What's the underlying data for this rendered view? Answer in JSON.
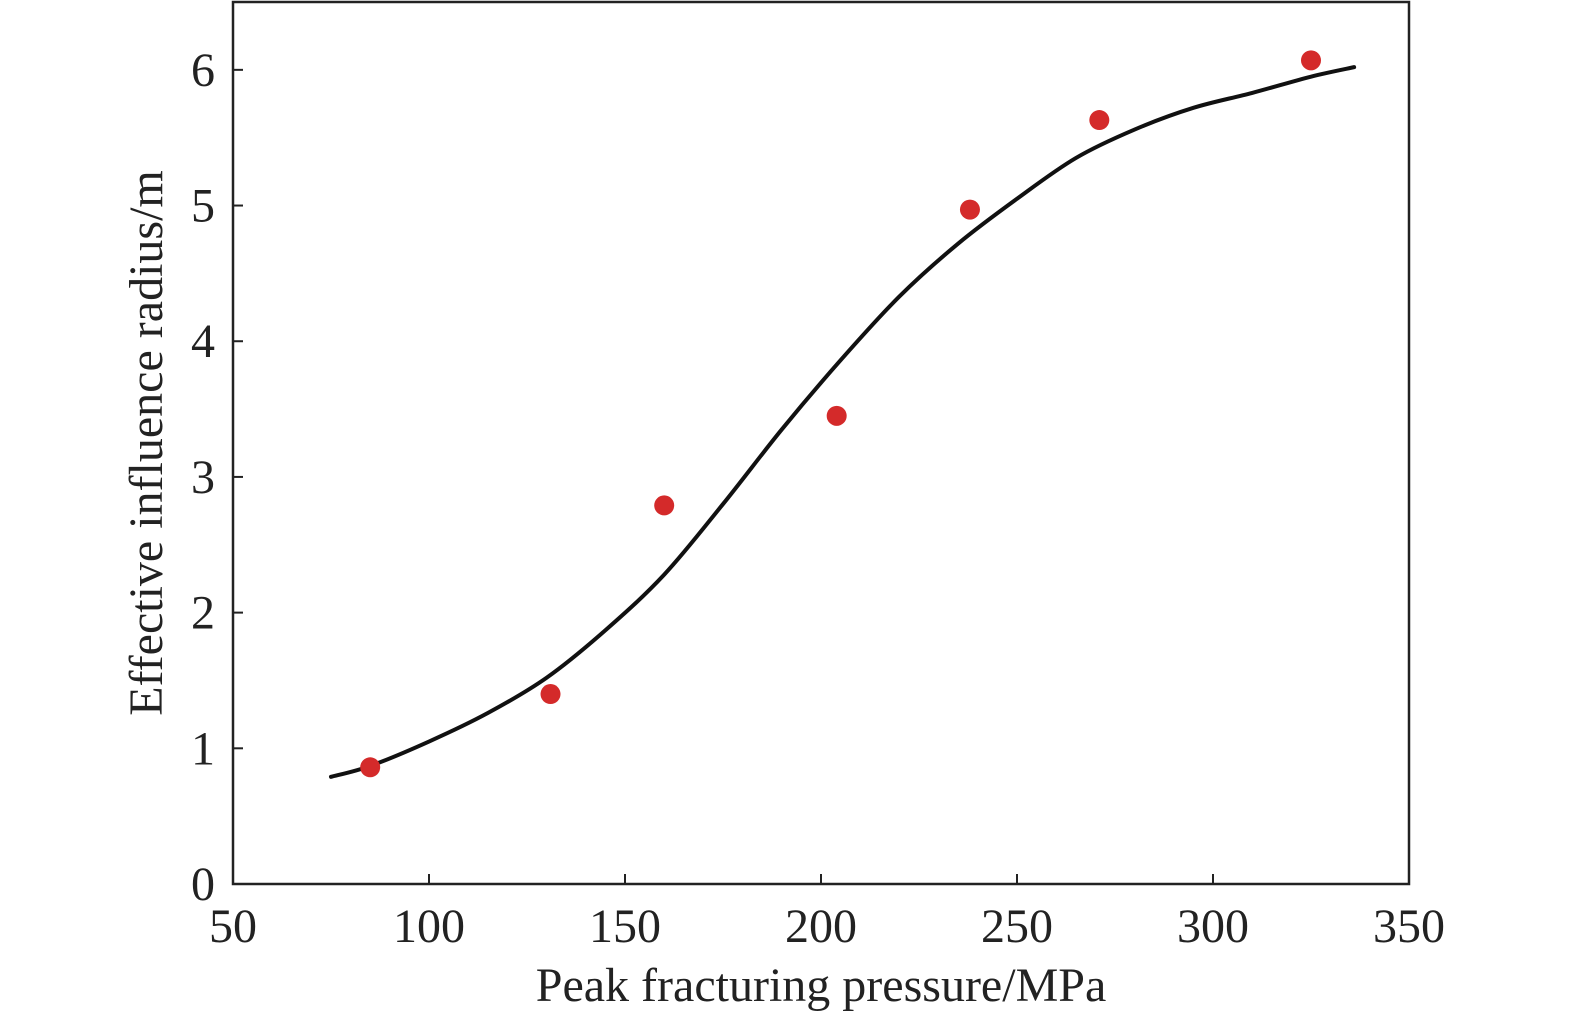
{
  "chart_data": {
    "type": "scatter",
    "xlabel": "Peak fracturing pressure/MPa",
    "ylabel": "Effective influence radius/m",
    "xlim": [
      50,
      350
    ],
    "ylim": [
      0,
      6.5
    ],
    "xticks": [
      50,
      100,
      150,
      200,
      250,
      300,
      350
    ],
    "yticks": [
      0,
      1,
      2,
      3,
      4,
      5,
      6
    ],
    "grid": false,
    "legend": "none",
    "series": [
      {
        "type": "scatter",
        "color": "#d42a2a",
        "points": [
          {
            "x": 85,
            "y": 0.86
          },
          {
            "x": 131,
            "y": 1.4
          },
          {
            "x": 160,
            "y": 2.79
          },
          {
            "x": 204,
            "y": 3.45
          },
          {
            "x": 238,
            "y": 4.97
          },
          {
            "x": 271,
            "y": 5.63
          },
          {
            "x": 325,
            "y": 6.07
          }
        ]
      },
      {
        "type": "line",
        "color": "#111111",
        "points": [
          {
            "x": 75,
            "y": 0.79
          },
          {
            "x": 85,
            "y": 0.87
          },
          {
            "x": 100,
            "y": 1.05
          },
          {
            "x": 115,
            "y": 1.26
          },
          {
            "x": 130,
            "y": 1.52
          },
          {
            "x": 145,
            "y": 1.87
          },
          {
            "x": 160,
            "y": 2.28
          },
          {
            "x": 175,
            "y": 2.8
          },
          {
            "x": 190,
            "y": 3.35
          },
          {
            "x": 205,
            "y": 3.86
          },
          {
            "x": 220,
            "y": 4.33
          },
          {
            "x": 235,
            "y": 4.72
          },
          {
            "x": 250,
            "y": 5.05
          },
          {
            "x": 265,
            "y": 5.35
          },
          {
            "x": 280,
            "y": 5.56
          },
          {
            "x": 295,
            "y": 5.72
          },
          {
            "x": 310,
            "y": 5.83
          },
          {
            "x": 325,
            "y": 5.95
          },
          {
            "x": 336,
            "y": 6.02
          }
        ]
      }
    ]
  }
}
